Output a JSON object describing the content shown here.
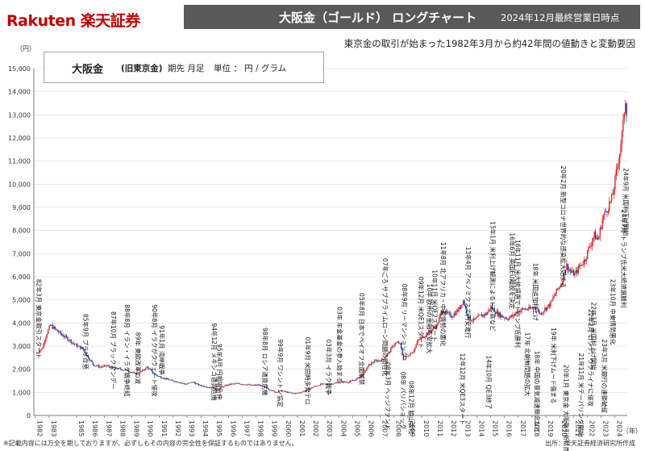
{
  "header": {
    "brand": "Rakuten 楽天証券",
    "title": "大阪金（ゴールド） ロングチャート",
    "date_note": "2024年12月最終営業日時点",
    "subtitle": "東京金の取引が始まった1982年3月から約42年間の値動きと変動要因"
  },
  "legend": {
    "name": "大阪金",
    "sub": "(旧東京金)",
    "period": "期先 月足",
    "unit": "単位 ： 円 / グラム"
  },
  "colors": {
    "brand": "#bf0000",
    "titlebar": "#595959",
    "up": "#d62a2a",
    "down": "#2b3f9e",
    "grid": "#d9d9d9",
    "axis": "#555555"
  },
  "footer": {
    "note": "※記載内容には万全を期しておりますが、必ずしもその内容の完全性を保証するものではありません。",
    "source": "出所：楽天証券経済研究所作成"
  },
  "chart_data": {
    "type": "candlestick",
    "y_unit_label": "（円）",
    "x_unit_label": "（年）",
    "ylim": [
      0,
      15000
    ],
    "y_ticks": [
      "0",
      "1,000",
      "2,000",
      "3,000",
      "4,000",
      "5,000",
      "6,000",
      "7,000",
      "8,000",
      "9,000",
      "10,000",
      "11,000",
      "12,000",
      "13,000",
      "14,000",
      "15,000"
    ],
    "x_ticks": [
      "1982",
      "1983",
      "1985",
      "1986",
      "1987",
      "1988",
      "1989",
      "1990",
      "1991",
      "1992",
      "1993",
      "1994",
      "1995",
      "1996",
      "1997",
      "1998",
      "1999",
      "2000",
      "2001",
      "2002",
      "2003",
      "2004",
      "2005",
      "2006",
      "2007",
      "2008",
      "2009",
      "2010",
      "2011",
      "2012",
      "2013",
      "2014",
      "2015",
      "2016",
      "2017",
      "2018",
      "2019",
      "2020",
      "2021",
      "2022",
      "2023",
      "2024"
    ],
    "grid": true,
    "series_points": [
      [
        1982.2,
        2700
      ],
      [
        1982.6,
        2900
      ],
      [
        1982.9,
        3500
      ],
      [
        1983.2,
        3900
      ],
      [
        1983.6,
        3700
      ],
      [
        1984.0,
        3500
      ],
      [
        1984.5,
        3300
      ],
      [
        1985.0,
        3050
      ],
      [
        1985.5,
        2900
      ],
      [
        1985.9,
        2550
      ],
      [
        1986.3,
        2200
      ],
      [
        1986.8,
        2100
      ],
      [
        1987.3,
        2150
      ],
      [
        1987.8,
        2050
      ],
      [
        1988.3,
        2000
      ],
      [
        1988.8,
        1950
      ],
      [
        1989.3,
        1800
      ],
      [
        1989.8,
        1900
      ],
      [
        1990.2,
        2100
      ],
      [
        1990.6,
        1850
      ],
      [
        1991.0,
        1700
      ],
      [
        1991.5,
        1600
      ],
      [
        1992.0,
        1500
      ],
      [
        1992.5,
        1450
      ],
      [
        1993.0,
        1350
      ],
      [
        1993.5,
        1450
      ],
      [
        1994.0,
        1300
      ],
      [
        1994.5,
        1250
      ],
      [
        1995.0,
        1180
      ],
      [
        1995.3,
        1120
      ],
      [
        1995.7,
        1250
      ],
      [
        1996.2,
        1350
      ],
      [
        1996.8,
        1380
      ],
      [
        1997.3,
        1350
      ],
      [
        1997.8,
        1300
      ],
      [
        1998.3,
        1320
      ],
      [
        1998.6,
        1250
      ],
      [
        1999.0,
        1150
      ],
      [
        1999.5,
        1000
      ],
      [
        1999.9,
        1080
      ],
      [
        2000.4,
        1000
      ],
      [
        2000.9,
        950
      ],
      [
        2001.3,
        1000
      ],
      [
        2001.8,
        1100
      ],
      [
        2002.3,
        1250
      ],
      [
        2002.8,
        1350
      ],
      [
        2003.3,
        1350
      ],
      [
        2003.8,
        1400
      ],
      [
        2004.3,
        1450
      ],
      [
        2004.8,
        1450
      ],
      [
        2005.3,
        1550
      ],
      [
        2005.8,
        1750
      ],
      [
        2006.3,
        2200
      ],
      [
        2006.7,
        2350
      ],
      [
        2007.2,
        2400
      ],
      [
        2007.7,
        2700
      ],
      [
        2008.1,
        3100
      ],
      [
        2008.5,
        3150
      ],
      [
        2008.8,
        2400
      ],
      [
        2009.1,
        2600
      ],
      [
        2009.5,
        2800
      ],
      [
        2009.9,
        3300
      ],
      [
        2010.3,
        3450
      ],
      [
        2010.8,
        3700
      ],
      [
        2011.2,
        3900
      ],
      [
        2011.6,
        4600
      ],
      [
        2011.9,
        4400
      ],
      [
        2012.3,
        4300
      ],
      [
        2012.8,
        4600
      ],
      [
        2013.1,
        5000
      ],
      [
        2013.5,
        4200
      ],
      [
        2013.9,
        4100
      ],
      [
        2014.3,
        4300
      ],
      [
        2014.8,
        4400
      ],
      [
        2015.1,
        4700
      ],
      [
        2015.6,
        4400
      ],
      [
        2015.9,
        4300
      ],
      [
        2016.3,
        4200
      ],
      [
        2016.7,
        4300
      ],
      [
        2017.0,
        4500
      ],
      [
        2017.5,
        4600
      ],
      [
        2017.9,
        4600
      ],
      [
        2018.3,
        4700
      ],
      [
        2018.7,
        4400
      ],
      [
        2019.0,
        4600
      ],
      [
        2019.4,
        4800
      ],
      [
        2019.8,
        5300
      ],
      [
        2020.2,
        5700
      ],
      [
        2020.6,
        6500
      ],
      [
        2020.9,
        6200
      ],
      [
        2021.2,
        6100
      ],
      [
        2021.6,
        6500
      ],
      [
        2021.9,
        6700
      ],
      [
        2022.2,
        7200
      ],
      [
        2022.6,
        7800
      ],
      [
        2022.9,
        7600
      ],
      [
        2023.2,
        8500
      ],
      [
        2023.5,
        8900
      ],
      [
        2023.9,
        9400
      ],
      [
        2024.1,
        10100
      ],
      [
        2024.4,
        11200
      ],
      [
        2024.7,
        12500
      ],
      [
        2024.85,
        13800
      ],
      [
        2024.95,
        13200
      ]
    ],
    "annotations": [
      {
        "text": "82年3月 東京金取引スタート",
        "x": 1982.2,
        "y": 5900
      },
      {
        "text": "85年9月 プラザ合意",
        "x": 1985.6,
        "y": 4400
      },
      {
        "text": "87年10月 ブラックマンデー",
        "x": 1987.6,
        "y": 4500
      },
      {
        "text": "88年8月 イラン・イラク戦争終結",
        "x": 1988.6,
        "y": 4800
      },
      {
        "text": "89年 東欧改革の波",
        "x": 1989.4,
        "y": 3600
      },
      {
        "text": "90年8月 イラクがクウェート侵攻",
        "x": 1990.6,
        "y": 4800
      },
      {
        "text": "91年1月 湾岸戦争",
        "x": 1991.1,
        "y": 3900
      },
      {
        "text": "94年12月 メキシコ通貨危機",
        "x": 1994.9,
        "y": 4000
      },
      {
        "text": "95年4月 円相場急伸",
        "x": 1995.3,
        "y": 3100
      },
      {
        "text": "98年8月 ロシア通貨危機",
        "x": 1998.6,
        "y": 3800
      },
      {
        "text": "99年9月 ワシントン協定",
        "x": 1999.7,
        "y": 3300
      },
      {
        "text": "01年9月 米同時多発テロ",
        "x": 2001.7,
        "y": 3400
      },
      {
        "text": "03年3月 イラク戦争",
        "x": 2003.2,
        "y": 3300
      },
      {
        "text": "03年 年金基金の参入始まる",
        "x": 2004.0,
        "y": 4700
      },
      {
        "text": "05年8月 日本でペイオフ全面解禁",
        "x": 2005.6,
        "y": 5300
      },
      {
        "text": "07年ごろ サブプライムローン問題の顕在化",
        "x": 2007.3,
        "y": 6800
      },
      {
        "text": "08年9月 リーマンショック",
        "x": 2008.7,
        "y": 5700
      },
      {
        "text": "08年 パリバショック",
        "x": 2008.6,
        "y": 1900
      },
      {
        "text": "08年3月 ヘッジファンド",
        "x": 2007.5,
        "y": 2300
      },
      {
        "text": "08年12月 脇山会社",
        "x": 2009.2,
        "y": 1500
      },
      {
        "text": "09年12月 米QE1スタート",
        "x": 2009.9,
        "y": 6000
      },
      {
        "text": "10年 欧州の金融不安拡大",
        "x": 2010.5,
        "y": 5700
      },
      {
        "text": "10年11月 米QE2スタート",
        "x": 2010.9,
        "y": 6300
      },
      {
        "text": "11年8月 北アフリカ・中東情勢の悪化",
        "x": 2011.5,
        "y": 7500
      },
      {
        "text": "12年12月 米QE3スタート",
        "x": 2012.9,
        "y": 2700
      },
      {
        "text": "13年4月 アベノミクスで円安進行",
        "x": 2013.3,
        "y": 7300
      },
      {
        "text": "14年10月 QE3終了",
        "x": 2014.8,
        "y": 2600
      },
      {
        "text": "15年1月 米利上げ観測によるドル高など",
        "x": 2015.1,
        "y": 8400
      },
      {
        "text": "16年6月 英国EU離脱を決定",
        "x": 2016.5,
        "y": 7900
      },
      {
        "text": "16年11月 米大統領選でトランプ氏勝利",
        "x": 2016.9,
        "y": 7600
      },
      {
        "text": "17年 北朝鮮問題の拡大",
        "x": 2017.6,
        "y": 3600
      },
      {
        "text": "18年 米国追加利上げ",
        "x": 2018.2,
        "y": 6600
      },
      {
        "text": "18年 中国の景気減速懸念など",
        "x": 2018.3,
        "y": 2800
      },
      {
        "text": "19年 米利下げムード強まる",
        "x": 2019.5,
        "y": 3800
      },
      {
        "text": "20年2月 新型コロナ世界的な感染拡大始まる",
        "x": 2020.2,
        "y": 10800
      },
      {
        "text": "20年1月 東京金 大阪取引所に商品移管",
        "x": 2020.4,
        "y": 2200
      },
      {
        "text": "21年11月 米テーパリング開始",
        "x": 2021.5,
        "y": 2700
      },
      {
        "text": "22年2月 ロシア、ウクライナに侵攻",
        "x": 2022.2,
        "y": 4600
      },
      {
        "text": "22年3月 米国利上げ開始",
        "x": 2022.4,
        "y": 4900
      },
      {
        "text": "23年3月 米銀行の連鎖破綻",
        "x": 2023.2,
        "y": 3300
      },
      {
        "text": "23年10月 中東情勢悪化",
        "x": 2023.8,
        "y": 5900
      },
      {
        "text": "24年7月 トランプ氏米大統領選勝利",
        "x": 2024.6,
        "y": 8900
      },
      {
        "text": "24年9月 米国利下げ開始",
        "x": 2024.75,
        "y": 10700
      }
    ]
  }
}
